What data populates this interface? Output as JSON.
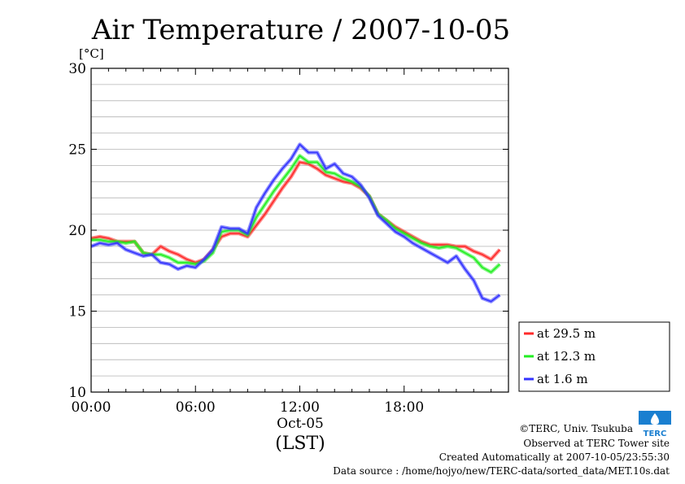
{
  "chart_data": {
    "type": "line",
    "title": "Air Temperature / 2007-10-05",
    "ylabel": "[°C]",
    "xlabel": "(LST)",
    "date_label": "Oct-05",
    "xlim": [
      0,
      24
    ],
    "ylim": [
      10,
      30
    ],
    "x_ticks": [
      {
        "value": 0,
        "label": "00:00"
      },
      {
        "value": 6,
        "label": "06:00"
      },
      {
        "value": 12,
        "label": "12:00"
      },
      {
        "value": 18,
        "label": "18:00"
      }
    ],
    "y_ticks": [
      {
        "value": 10,
        "label": "10"
      },
      {
        "value": 15,
        "label": "15"
      },
      {
        "value": 20,
        "label": "20"
      },
      {
        "value": 25,
        "label": "25"
      },
      {
        "value": 30,
        "label": "30"
      }
    ],
    "grid": true,
    "legend_position": "right",
    "series": [
      {
        "name": "at 29.5 m",
        "color": "#ff2a2a",
        "x": [
          0,
          0.5,
          1,
          1.5,
          2,
          2.5,
          3,
          3.5,
          4,
          4.5,
          5,
          5.5,
          6,
          6.5,
          7,
          7.5,
          8,
          8.5,
          9,
          9.5,
          10,
          10.5,
          11,
          11.5,
          12,
          12.5,
          13,
          13.5,
          14,
          14.5,
          15,
          15.5,
          16,
          16.5,
          17,
          17.5,
          18,
          18.5,
          19,
          19.5,
          20,
          20.5,
          21,
          21.5,
          22,
          22.5,
          23,
          23.5
        ],
        "y": [
          19.5,
          19.6,
          19.5,
          19.3,
          19.3,
          19.3,
          18.6,
          18.5,
          19.0,
          18.7,
          18.5,
          18.2,
          18.0,
          18.2,
          18.8,
          19.6,
          19.8,
          19.8,
          19.6,
          20.3,
          21.0,
          21.8,
          22.6,
          23.3,
          24.2,
          24.1,
          23.8,
          23.4,
          23.2,
          23.0,
          22.9,
          22.6,
          22.1,
          21.0,
          20.6,
          20.2,
          19.9,
          19.6,
          19.3,
          19.1,
          19.1,
          19.1,
          19.0,
          19.0,
          18.7,
          18.5,
          18.2,
          18.8
        ]
      },
      {
        "name": "at 12.3 m",
        "color": "#22ee22",
        "x": [
          0,
          0.5,
          1,
          1.5,
          2,
          2.5,
          3,
          3.5,
          4,
          4.5,
          5,
          5.5,
          6,
          6.5,
          7,
          7.5,
          8,
          8.5,
          9,
          9.5,
          10,
          10.5,
          11,
          11.5,
          12,
          12.5,
          13,
          13.5,
          14,
          14.5,
          15,
          15.5,
          16,
          16.5,
          17,
          17.5,
          18,
          18.5,
          19,
          19.5,
          20,
          20.5,
          21,
          21.5,
          22,
          22.5,
          23,
          23.5
        ],
        "y": [
          19.4,
          19.4,
          19.3,
          19.3,
          19.2,
          19.3,
          18.6,
          18.5,
          18.5,
          18.3,
          18.0,
          18.0,
          17.9,
          18.1,
          18.6,
          19.9,
          20.0,
          20.0,
          19.7,
          20.8,
          21.6,
          22.4,
          23.1,
          23.8,
          24.6,
          24.2,
          24.2,
          23.6,
          23.5,
          23.2,
          23.0,
          22.7,
          22.1,
          21.0,
          20.6,
          20.1,
          19.8,
          19.5,
          19.2,
          19.0,
          18.9,
          19.0,
          18.9,
          18.6,
          18.3,
          17.7,
          17.4,
          17.9
        ]
      },
      {
        "name": "at 1.6 m",
        "color": "#3333ff",
        "x": [
          0,
          0.5,
          1,
          1.5,
          2,
          2.5,
          3,
          3.5,
          4,
          4.5,
          5,
          5.5,
          6,
          6.5,
          7,
          7.5,
          8,
          8.5,
          9,
          9.5,
          10,
          10.5,
          11,
          11.5,
          12,
          12.5,
          13,
          13.5,
          14,
          14.5,
          15,
          15.5,
          16,
          16.5,
          17,
          17.5,
          18,
          18.5,
          19,
          19.5,
          20,
          20.5,
          21,
          21.5,
          22,
          22.5,
          23,
          23.5
        ],
        "y": [
          19.0,
          19.2,
          19.1,
          19.2,
          18.8,
          18.6,
          18.4,
          18.5,
          18.0,
          17.9,
          17.6,
          17.8,
          17.7,
          18.2,
          18.8,
          20.2,
          20.1,
          20.1,
          19.8,
          21.4,
          22.3,
          23.1,
          23.8,
          24.4,
          25.3,
          24.8,
          24.8,
          23.8,
          24.1,
          23.5,
          23.3,
          22.8,
          22.0,
          20.9,
          20.4,
          19.9,
          19.6,
          19.2,
          18.9,
          18.6,
          18.3,
          18.0,
          18.4,
          17.6,
          16.9,
          15.8,
          15.6,
          16.0
        ]
      }
    ]
  },
  "footer": {
    "copyright": "©TERC, Univ. Tsukuba",
    "observed": "Observed at TERC Tower site",
    "created": "Created Automatically at 2007-10-05/23:55:30",
    "source": "Data source : /home/hojyo/new/TERC-data/sorted_data/MET.10s.dat"
  },
  "logo": {
    "text": "TERC",
    "color": "#1a7fd0"
  }
}
